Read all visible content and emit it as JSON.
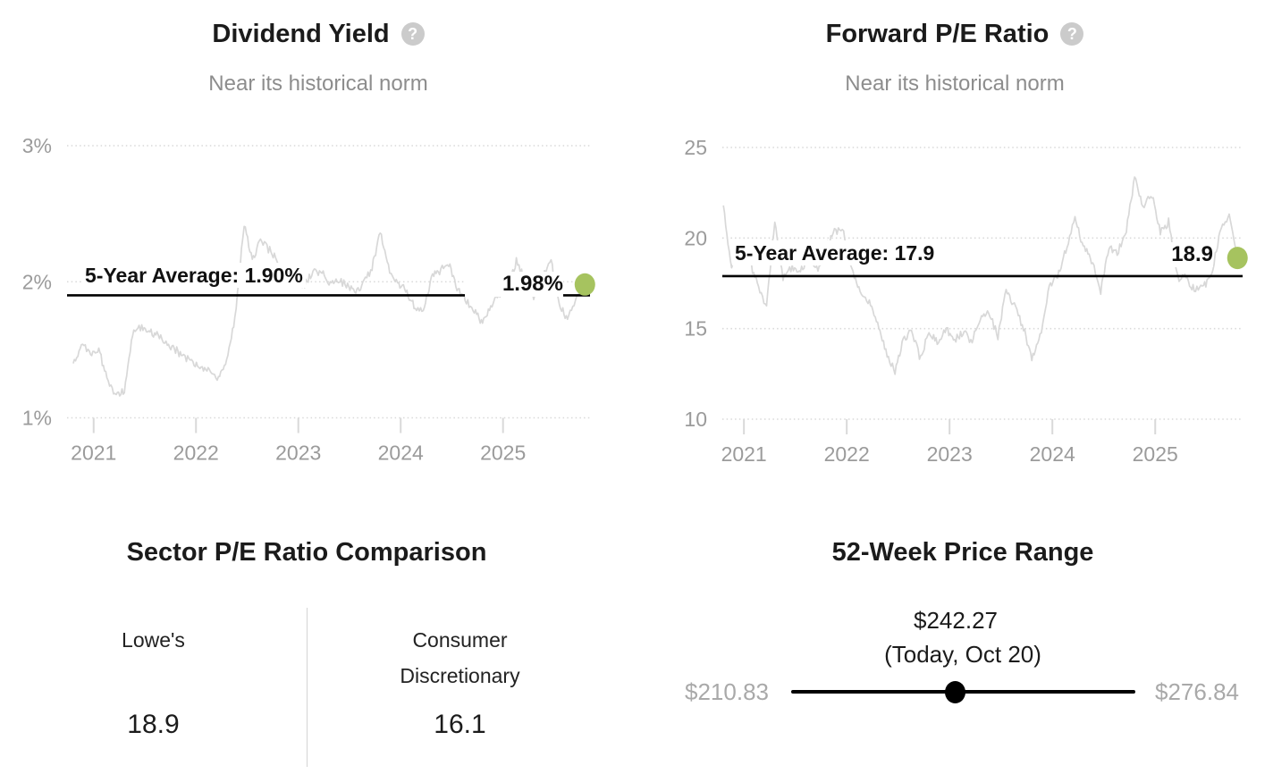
{
  "icons": {
    "help_glyph": "?"
  },
  "colors": {
    "page_background": "#ffffff",
    "title_text": "#1b1b1b",
    "subtitle_text": "#8d8d8d",
    "axis_label": "#9b9b9b",
    "series_line": "#d8d8d8",
    "grid_line": "#d9d9d9",
    "reference_line": "#000000",
    "current_dot_green": "#a6c35f",
    "range_minmax_gray": "#a9a9a9",
    "help_icon_bg": "#cbcbcb"
  },
  "chart_data": [
    {
      "id": "dividend-yield",
      "type": "line",
      "title": "Dividend Yield",
      "subtitle": "Near its historical norm",
      "legend_position": "none",
      "grid": "horizontal-dotted",
      "yticks": [
        1,
        2,
        3
      ],
      "ytick_labels": [
        "1%",
        "2%",
        "3%"
      ],
      "ylim": [
        1,
        3
      ],
      "xticks": [
        2021,
        2022,
        2023,
        2024,
        2025
      ],
      "xtick_labels": [
        "2021",
        "2022",
        "2023",
        "2024",
        "2025"
      ],
      "xlim": [
        2020.74,
        2025.85
      ],
      "average": {
        "value": 1.9,
        "label": "5-Year Average: 1.90%"
      },
      "current": {
        "value": 1.98,
        "label": "1.98%"
      },
      "x": [
        2020.8,
        2020.88,
        2020.97,
        2021.05,
        2021.13,
        2021.22,
        2021.3,
        2021.38,
        2021.47,
        2021.55,
        2021.63,
        2021.72,
        2021.8,
        2021.88,
        2021.97,
        2022.05,
        2022.13,
        2022.22,
        2022.3,
        2022.38,
        2022.47,
        2022.55,
        2022.63,
        2022.72,
        2022.8,
        2022.88,
        2022.97,
        2023.05,
        2023.13,
        2023.22,
        2023.3,
        2023.38,
        2023.47,
        2023.55,
        2023.63,
        2023.72,
        2023.8,
        2023.88,
        2023.97,
        2024.05,
        2024.13,
        2024.22,
        2024.3,
        2024.38,
        2024.47,
        2024.55,
        2024.63,
        2024.72,
        2024.8,
        2024.88,
        2024.97,
        2025.05,
        2025.13,
        2025.22,
        2025.3,
        2025.38,
        2025.47,
        2025.55,
        2025.63,
        2025.72,
        2025.8
      ],
      "y": [
        1.4,
        1.53,
        1.48,
        1.5,
        1.29,
        1.15,
        1.2,
        1.62,
        1.67,
        1.64,
        1.6,
        1.55,
        1.5,
        1.45,
        1.4,
        1.37,
        1.35,
        1.28,
        1.41,
        1.73,
        2.41,
        2.17,
        2.3,
        2.23,
        2.15,
        2.04,
        2.0,
        1.97,
        2.06,
        2.08,
        1.99,
        2.02,
        1.97,
        1.93,
        1.97,
        2.1,
        2.38,
        2.1,
        1.98,
        1.94,
        1.82,
        1.79,
        2.03,
        2.08,
        2.14,
        1.95,
        1.88,
        1.78,
        1.7,
        1.83,
        1.9,
        1.99,
        2.15,
        2.0,
        1.88,
        2.02,
        2.15,
        1.83,
        1.73,
        1.89,
        1.98
      ]
    },
    {
      "id": "forward-pe",
      "type": "line",
      "title": "Forward P/E Ratio",
      "subtitle": "Near its historical norm",
      "legend_position": "none",
      "grid": "horizontal-dotted",
      "yticks": [
        10,
        15,
        20,
        25
      ],
      "ytick_labels": [
        "10",
        "15",
        "20",
        "25"
      ],
      "ylim": [
        10,
        25
      ],
      "xticks": [
        2021,
        2022,
        2023,
        2024,
        2025
      ],
      "xtick_labels": [
        "2021",
        "2022",
        "2023",
        "2024",
        "2025"
      ],
      "xlim": [
        2020.79,
        2025.85
      ],
      "average": {
        "value": 17.9,
        "label": "5-Year Average: 17.9"
      },
      "current": {
        "value": 18.9,
        "label": "18.9"
      },
      "x": [
        2020.8,
        2020.88,
        2020.97,
        2021.05,
        2021.13,
        2021.22,
        2021.3,
        2021.38,
        2021.47,
        2021.55,
        2021.63,
        2021.72,
        2021.8,
        2021.88,
        2021.97,
        2022.05,
        2022.13,
        2022.22,
        2022.3,
        2022.38,
        2022.47,
        2022.55,
        2022.63,
        2022.72,
        2022.8,
        2022.88,
        2022.97,
        2023.05,
        2023.13,
        2023.22,
        2023.3,
        2023.38,
        2023.47,
        2023.55,
        2023.63,
        2023.72,
        2023.8,
        2023.88,
        2023.97,
        2024.05,
        2024.13,
        2024.22,
        2024.3,
        2024.38,
        2024.47,
        2024.55,
        2024.63,
        2024.72,
        2024.8,
        2024.88,
        2024.97,
        2025.05,
        2025.13,
        2025.22,
        2025.3,
        2025.38,
        2025.47,
        2025.55,
        2025.63,
        2025.72,
        2025.8
      ],
      "y": [
        21.8,
        18.3,
        19.3,
        18.8,
        17.5,
        16.1,
        21.0,
        17.8,
        18.4,
        18.2,
        19.0,
        18.3,
        19.5,
        20.4,
        20.3,
        18.3,
        17.0,
        16.4,
        15.2,
        13.8,
        12.5,
        14.5,
        14.8,
        13.3,
        14.9,
        14.2,
        15.0,
        14.4,
        14.8,
        14.3,
        15.6,
        16.0,
        14.5,
        17.2,
        16.2,
        15.0,
        13.4,
        14.5,
        17.3,
        17.9,
        19.3,
        21.2,
        19.5,
        18.8,
        17.1,
        19.5,
        19.2,
        20.4,
        23.4,
        21.8,
        22.3,
        20.3,
        20.9,
        17.8,
        17.9,
        17.1,
        17.3,
        18.0,
        20.4,
        21.3,
        18.9
      ]
    },
    {
      "id": "sector-pe-comparison",
      "type": "table",
      "title": "Sector P/E Ratio Comparison",
      "columns": [
        {
          "label": "Lowe's",
          "value": "18.9"
        },
        {
          "label": "Consumer Discretionary",
          "value": "16.1"
        }
      ]
    },
    {
      "id": "price-range",
      "type": "range",
      "title": "52-Week Price Range",
      "current_price": "$242.27",
      "current_caption": "(Today, Oct 20)",
      "min": "$210.83",
      "max": "$276.84",
      "position_pct": 47.8
    }
  ]
}
